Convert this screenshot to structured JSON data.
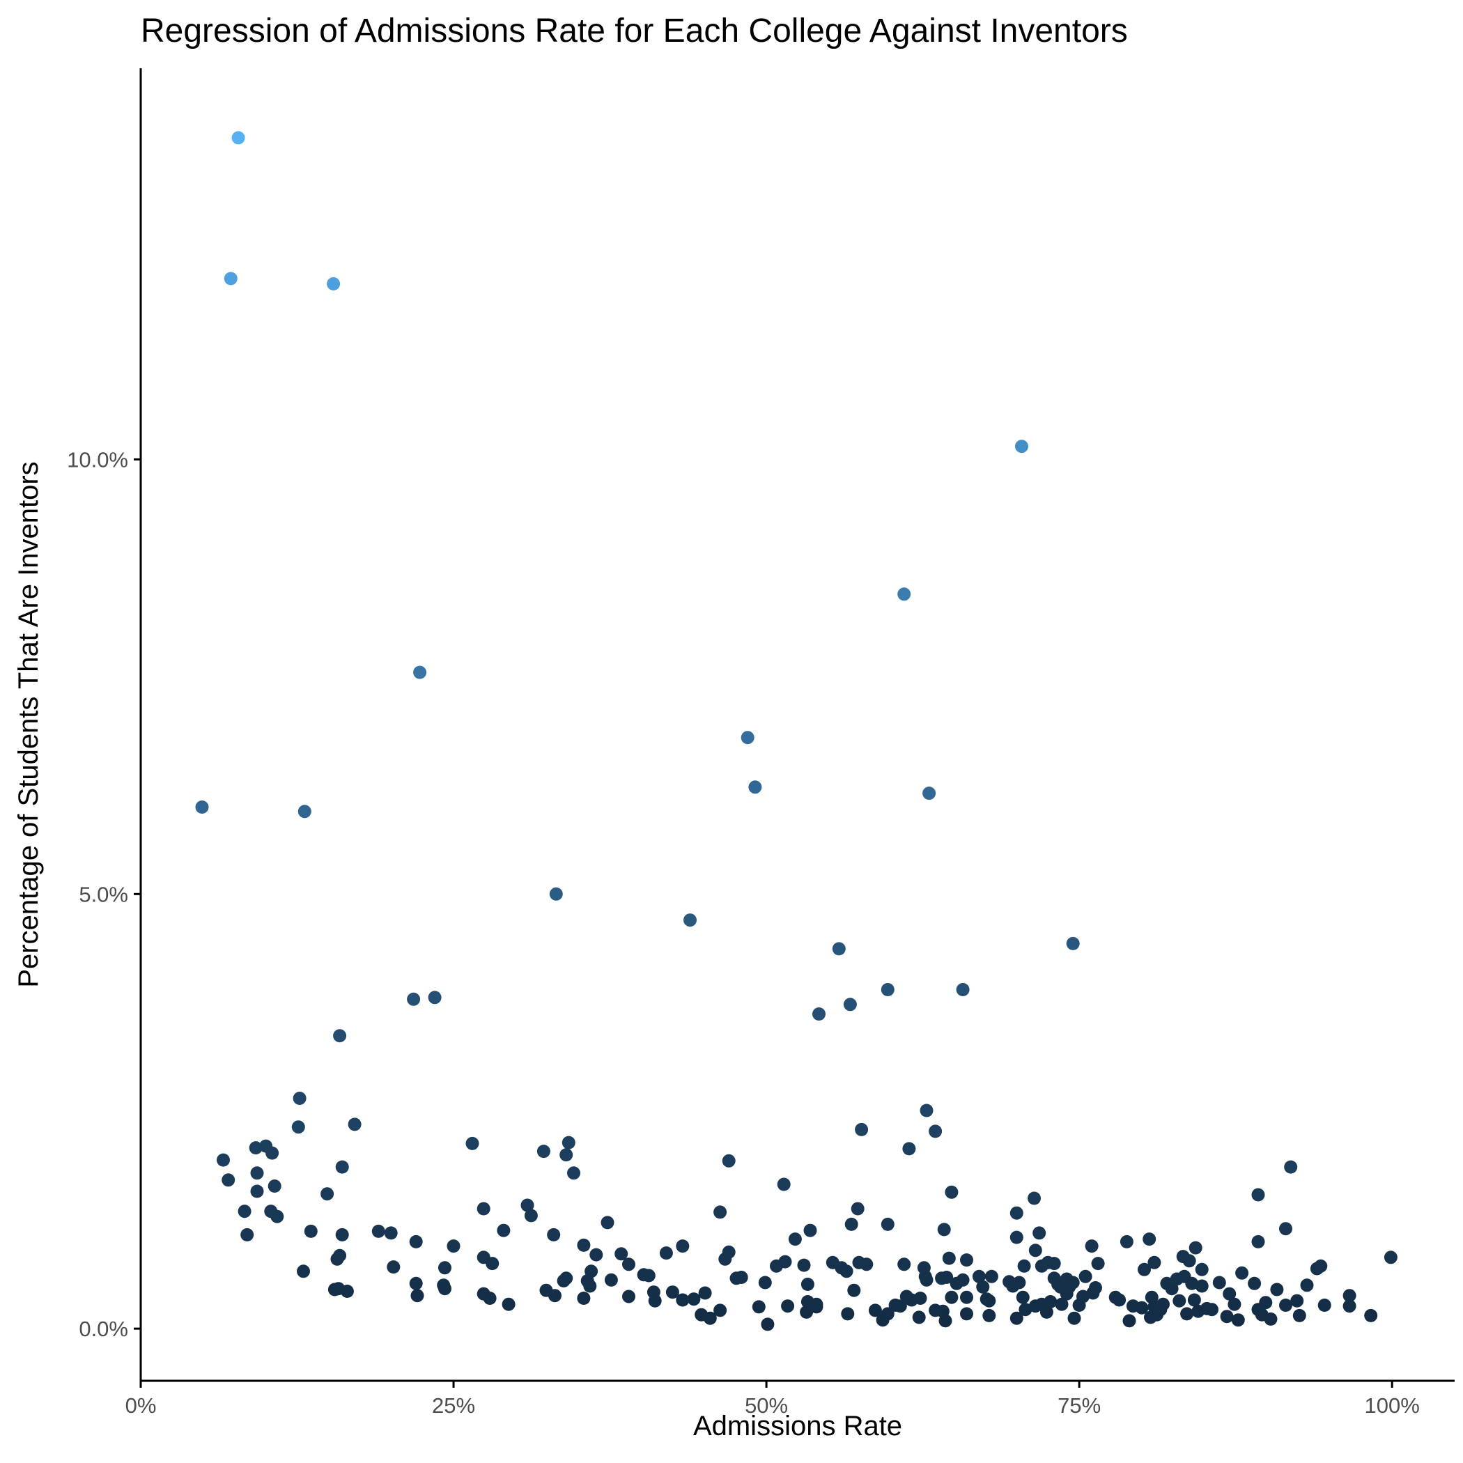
{
  "chart_data": {
    "type": "scatter",
    "title": "Regression of Admissions Rate for Each College Against Inventors",
    "xlabel": "Admissions Rate",
    "ylabel": "Percentage of Students That Are Inventors",
    "xlim": [
      0,
      1.05
    ],
    "ylim": [
      -0.6,
      14.5
    ],
    "xticks": [
      {
        "value": 0,
        "label": "0%"
      },
      {
        "value": 0.25,
        "label": "25%"
      },
      {
        "value": 0.5,
        "label": "50%"
      },
      {
        "value": 0.75,
        "label": "75%"
      },
      {
        "value": 1.0,
        "label": "100%"
      }
    ],
    "yticks": [
      {
        "value": 0,
        "label": "0.0%"
      },
      {
        "value": 5,
        "label": "5.0%"
      },
      {
        "value": 10,
        "label": "10.0%"
      }
    ],
    "grid": false,
    "legend": "none",
    "color_scale": {
      "low": "#132b43",
      "high": "#56b1f7",
      "min": 0,
      "max": 13.8
    },
    "points": [
      [
        0.078,
        13.7
      ],
      [
        0.072,
        12.08
      ],
      [
        0.154,
        12.02
      ],
      [
        0.704,
        10.15
      ],
      [
        0.61,
        8.45
      ],
      [
        0.223,
        7.55
      ],
      [
        0.485,
        6.8
      ],
      [
        0.049,
        6.0
      ],
      [
        0.131,
        5.95
      ],
      [
        0.491,
        6.23
      ],
      [
        0.63,
        6.16
      ],
      [
        0.332,
        5.0
      ],
      [
        0.439,
        4.7
      ],
      [
        0.745,
        4.43
      ],
      [
        0.558,
        4.37
      ],
      [
        0.218,
        3.79
      ],
      [
        0.235,
        3.81
      ],
      [
        0.597,
        3.9
      ],
      [
        0.657,
        3.9
      ],
      [
        0.542,
        3.62
      ],
      [
        0.567,
        3.73
      ],
      [
        0.159,
        3.37
      ],
      [
        0.127,
        2.65
      ],
      [
        0.126,
        2.32
      ],
      [
        0.171,
        2.35
      ],
      [
        0.628,
        2.51
      ],
      [
        0.635,
        2.27
      ],
      [
        0.576,
        2.29
      ],
      [
        0.614,
        2.07
      ],
      [
        0.265,
        2.13
      ],
      [
        0.342,
        2.14
      ],
      [
        0.322,
        2.04
      ],
      [
        0.34,
        2.0
      ],
      [
        0.346,
        1.79
      ],
      [
        0.47,
        1.93
      ],
      [
        0.161,
        1.86
      ],
      [
        0.092,
        2.08
      ],
      [
        0.1,
        2.1
      ],
      [
        0.105,
        2.02
      ],
      [
        0.066,
        1.94
      ],
      [
        0.07,
        1.71
      ],
      [
        0.093,
        1.79
      ],
      [
        0.093,
        1.58
      ],
      [
        0.107,
        1.64
      ],
      [
        0.149,
        1.55
      ],
      [
        0.514,
        1.66
      ],
      [
        0.919,
        1.86
      ],
      [
        0.893,
        1.54
      ],
      [
        0.714,
        1.5
      ],
      [
        0.648,
        1.57
      ],
      [
        0.083,
        1.35
      ],
      [
        0.104,
        1.35
      ],
      [
        0.109,
        1.29
      ],
      [
        0.085,
        1.08
      ],
      [
        0.136,
        1.12
      ],
      [
        0.161,
        1.08
      ],
      [
        0.19,
        1.12
      ],
      [
        0.2,
        1.1
      ],
      [
        0.274,
        1.38
      ],
      [
        0.309,
        1.42
      ],
      [
        0.312,
        1.3
      ],
      [
        0.29,
        1.13
      ],
      [
        0.373,
        1.22
      ],
      [
        0.463,
        1.34
      ],
      [
        0.573,
        1.38
      ],
      [
        0.568,
        1.2
      ],
      [
        0.597,
        1.2
      ],
      [
        0.642,
        1.14
      ],
      [
        0.7,
        1.33
      ],
      [
        0.7,
        1.05
      ],
      [
        0.718,
        1.1
      ],
      [
        0.915,
        1.15
      ],
      [
        0.893,
        1.0
      ],
      [
        0.806,
        1.03
      ],
      [
        0.788,
        1.0
      ],
      [
        0.535,
        1.13
      ],
      [
        0.523,
        1.03
      ],
      [
        0.22,
        1.0
      ],
      [
        0.25,
        0.95
      ],
      [
        0.33,
        1.08
      ],
      [
        0.354,
        0.96
      ],
      [
        0.13,
        0.66
      ],
      [
        0.157,
        0.8
      ],
      [
        0.159,
        0.84
      ],
      [
        0.202,
        0.71
      ],
      [
        0.274,
        0.82
      ],
      [
        0.281,
        0.75
      ],
      [
        0.364,
        0.85
      ],
      [
        0.384,
        0.86
      ],
      [
        0.39,
        0.74
      ],
      [
        0.42,
        0.87
      ],
      [
        0.433,
        0.95
      ],
      [
        0.47,
        0.88
      ],
      [
        0.467,
        0.8
      ],
      [
        0.515,
        0.77
      ],
      [
        0.508,
        0.72
      ],
      [
        0.53,
        0.73
      ],
      [
        0.553,
        0.76
      ],
      [
        0.56,
        0.7
      ],
      [
        0.574,
        0.76
      ],
      [
        0.58,
        0.74
      ],
      [
        0.61,
        0.74
      ],
      [
        0.626,
        0.7
      ],
      [
        0.66,
        0.79
      ],
      [
        0.646,
        0.81
      ],
      [
        0.72,
        0.72
      ],
      [
        0.715,
        0.9
      ],
      [
        0.706,
        0.72
      ],
      [
        0.73,
        0.75
      ],
      [
        0.725,
        0.76
      ],
      [
        0.76,
        0.95
      ],
      [
        0.765,
        0.75
      ],
      [
        0.81,
        0.76
      ],
      [
        0.802,
        0.68
      ],
      [
        0.838,
        0.78
      ],
      [
        0.843,
        0.93
      ],
      [
        0.833,
        0.83
      ],
      [
        0.848,
        0.68
      ],
      [
        0.943,
        0.72
      ],
      [
        0.94,
        0.69
      ],
      [
        0.999,
        0.82
      ],
      [
        0.155,
        0.45
      ],
      [
        0.158,
        0.46
      ],
      [
        0.165,
        0.43
      ],
      [
        0.22,
        0.52
      ],
      [
        0.221,
        0.38
      ],
      [
        0.242,
        0.5
      ],
      [
        0.243,
        0.46
      ],
      [
        0.243,
        0.7
      ],
      [
        0.274,
        0.4
      ],
      [
        0.279,
        0.35
      ],
      [
        0.294,
        0.28
      ],
      [
        0.324,
        0.44
      ],
      [
        0.331,
        0.38
      ],
      [
        0.338,
        0.55
      ],
      [
        0.34,
        0.58
      ],
      [
        0.354,
        0.35
      ],
      [
        0.357,
        0.55
      ],
      [
        0.359,
        0.49
      ],
      [
        0.36,
        0.66
      ],
      [
        0.376,
        0.56
      ],
      [
        0.39,
        0.37
      ],
      [
        0.402,
        0.62
      ],
      [
        0.406,
        0.61
      ],
      [
        0.41,
        0.42
      ],
      [
        0.411,
        0.32
      ],
      [
        0.425,
        0.42
      ],
      [
        0.433,
        0.33
      ],
      [
        0.442,
        0.34
      ],
      [
        0.448,
        0.16
      ],
      [
        0.451,
        0.41
      ],
      [
        0.455,
        0.12
      ],
      [
        0.463,
        0.21
      ],
      [
        0.476,
        0.58
      ],
      [
        0.48,
        0.59
      ],
      [
        0.494,
        0.25
      ],
      [
        0.499,
        0.53
      ],
      [
        0.501,
        0.05
      ],
      [
        0.517,
        0.26
      ],
      [
        0.533,
        0.51
      ],
      [
        0.533,
        0.31
      ],
      [
        0.532,
        0.19
      ],
      [
        0.54,
        0.25
      ],
      [
        0.54,
        0.28
      ],
      [
        0.564,
        0.66
      ],
      [
        0.565,
        0.17
      ],
      [
        0.57,
        0.44
      ],
      [
        0.587,
        0.21
      ],
      [
        0.593,
        0.1
      ],
      [
        0.597,
        0.17
      ],
      [
        0.603,
        0.27
      ],
      [
        0.607,
        0.26
      ],
      [
        0.612,
        0.37
      ],
      [
        0.616,
        0.33
      ],
      [
        0.622,
        0.13
      ],
      [
        0.623,
        0.35
      ],
      [
        0.627,
        0.6
      ],
      [
        0.628,
        0.56
      ],
      [
        0.635,
        0.21
      ],
      [
        0.64,
        0.58
      ],
      [
        0.641,
        0.2
      ],
      [
        0.643,
        0.09
      ],
      [
        0.644,
        0.59
      ],
      [
        0.648,
        0.36
      ],
      [
        0.652,
        0.52
      ],
      [
        0.657,
        0.56
      ],
      [
        0.66,
        0.36
      ],
      [
        0.66,
        0.17
      ],
      [
        0.67,
        0.6
      ],
      [
        0.673,
        0.48
      ],
      [
        0.676,
        0.34
      ],
      [
        0.678,
        0.32
      ],
      [
        0.678,
        0.15
      ],
      [
        0.68,
        0.6
      ],
      [
        0.694,
        0.54
      ],
      [
        0.697,
        0.49
      ],
      [
        0.702,
        0.53
      ],
      [
        0.7,
        0.12
      ],
      [
        0.705,
        0.36
      ],
      [
        0.707,
        0.22
      ],
      [
        0.715,
        0.26
      ],
      [
        0.72,
        0.28
      ],
      [
        0.724,
        0.19
      ],
      [
        0.727,
        0.31
      ],
      [
        0.73,
        0.58
      ],
      [
        0.733,
        0.51
      ],
      [
        0.735,
        0.48
      ],
      [
        0.736,
        0.28
      ],
      [
        0.74,
        0.57
      ],
      [
        0.74,
        0.4
      ],
      [
        0.742,
        0.48
      ],
      [
        0.746,
        0.12
      ],
      [
        0.745,
        0.53
      ],
      [
        0.75,
        0.27
      ],
      [
        0.753,
        0.37
      ],
      [
        0.755,
        0.6
      ],
      [
        0.761,
        0.41
      ],
      [
        0.763,
        0.47
      ],
      [
        0.779,
        0.36
      ],
      [
        0.782,
        0.33
      ],
      [
        0.79,
        0.09
      ],
      [
        0.793,
        0.26
      ],
      [
        0.8,
        0.24
      ],
      [
        0.807,
        0.13
      ],
      [
        0.808,
        0.36
      ],
      [
        0.81,
        0.25
      ],
      [
        0.812,
        0.16
      ],
      [
        0.815,
        0.22
      ],
      [
        0.817,
        0.28
      ],
      [
        0.82,
        0.52
      ],
      [
        0.824,
        0.46
      ],
      [
        0.828,
        0.57
      ],
      [
        0.83,
        0.32
      ],
      [
        0.834,
        0.6
      ],
      [
        0.836,
        0.17
      ],
      [
        0.84,
        0.52
      ],
      [
        0.842,
        0.33
      ],
      [
        0.845,
        0.2
      ],
      [
        0.848,
        0.49
      ],
      [
        0.852,
        0.23
      ],
      [
        0.856,
        0.22
      ],
      [
        0.862,
        0.53
      ],
      [
        0.868,
        0.14
      ],
      [
        0.87,
        0.4
      ],
      [
        0.874,
        0.28
      ],
      [
        0.877,
        0.1
      ],
      [
        0.88,
        0.64
      ],
      [
        0.893,
        0.22
      ],
      [
        0.89,
        0.52
      ],
      [
        0.896,
        0.16
      ],
      [
        0.899,
        0.3
      ],
      [
        0.903,
        0.11
      ],
      [
        0.908,
        0.45
      ],
      [
        0.915,
        0.27
      ],
      [
        0.924,
        0.32
      ],
      [
        0.926,
        0.15
      ],
      [
        0.932,
        0.5
      ],
      [
        0.946,
        0.27
      ],
      [
        0.966,
        0.26
      ],
      [
        0.966,
        0.38
      ],
      [
        0.983,
        0.15
      ]
    ]
  }
}
